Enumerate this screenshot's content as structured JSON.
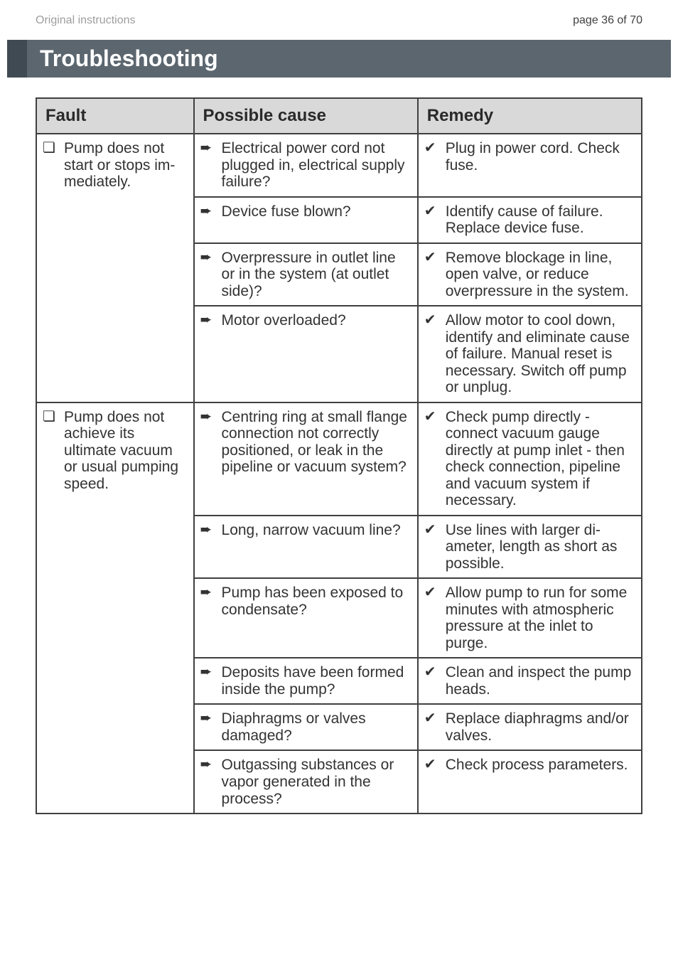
{
  "header": {
    "left": "Original instructions",
    "right": "page 36 of 70"
  },
  "title": "Troubleshooting",
  "table": {
    "headers": [
      "Fault",
      "Possible cause",
      "Remedy"
    ],
    "groups": [
      {
        "fault": "Pump does not start or stops im­mediately.",
        "rows": [
          {
            "cause": "Electrical power cord not plugged in, electri­cal supply failure?",
            "remedy": "Plug in power cord. Check fuse."
          },
          {
            "cause": "Device fuse blown?",
            "remedy": "Identify cause of failure. Replace device fuse."
          },
          {
            "cause": "Overpressure in outlet line or in the system (at outlet side)?",
            "remedy": "Remove blockage in line, open valve, or reduce overpressure in the sys­tem."
          },
          {
            "cause": "Motor overloaded?",
            "remedy": "Allow motor to cool down, identify and eliminate cause of failure. Manual reset is necessary. Switch off pump or unplug."
          }
        ]
      },
      {
        "fault": "Pump does not achieve its ultimate vacuum or usual pumping speed.",
        "rows": [
          {
            "cause": "Centring ring at small flange connection not correctly positioned, or leak in the pipeline or vacuum system?",
            "remedy": "Check pump directly - connect vacuum gauge directly at pump inlet - then check connection, pipeline and vacuum system if necessary."
          },
          {
            "cause": "Long, narrow vacuum line?",
            "remedy": "Use lines with larger di­ameter, length as short as possible."
          },
          {
            "cause": "Pump has been ex­posed to condensate?",
            "remedy": "Allow pump to run for some minutes with atmo­spheric pressure at the inlet to purge."
          },
          {
            "cause": "Deposits have been formed inside the pump?",
            "remedy": "Clean and inspect the pump heads."
          },
          {
            "cause": "Diaphragms or valves damaged?",
            "remedy": "Replace diaphragms and/or valves."
          },
          {
            "cause": "Outgassing substances or vapor generated in the process?",
            "remedy": "Check process parame­ters."
          }
        ]
      }
    ]
  },
  "symbols": {
    "fault": "❏",
    "cause": "➨",
    "remedy": "✔"
  }
}
